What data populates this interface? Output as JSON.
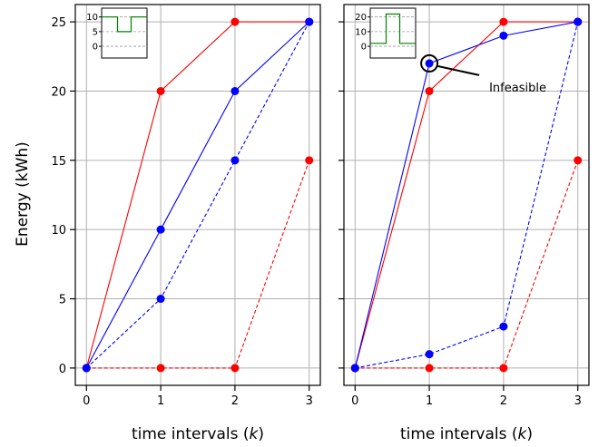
{
  "chart_data": [
    {
      "type": "line",
      "xlabel": "time intervals (k)",
      "ylabel": "Energy (kWh)",
      "xlim": [
        -0.15,
        3.15
      ],
      "ylim": [
        -1.25,
        26.25
      ],
      "xticks": [
        "0",
        "1",
        "2",
        "3"
      ],
      "yticks": [
        "0",
        "5",
        "10",
        "15",
        "20",
        "25"
      ],
      "grid": true,
      "series": [
        {
          "color": "#ff0000",
          "style": "solid",
          "x": [
            0,
            1,
            2,
            3
          ],
          "y": [
            0,
            20,
            25,
            25
          ]
        },
        {
          "color": "#ff0000",
          "style": "dashed",
          "x": [
            0,
            1,
            2,
            3
          ],
          "y": [
            0,
            0,
            0,
            15
          ]
        },
        {
          "color": "#0000ff",
          "style": "solid",
          "x": [
            0,
            1,
            2,
            3
          ],
          "y": [
            0,
            10,
            20,
            25
          ]
        },
        {
          "color": "#0000ff",
          "style": "dashed",
          "x": [
            0,
            1,
            2,
            3
          ],
          "y": [
            0,
            5,
            15,
            25
          ]
        }
      ],
      "inset": {
        "type": "step",
        "color": "#008000",
        "yticks": [
          "0",
          "5",
          "10"
        ],
        "ylim": [
          -4,
          13
        ],
        "x": [
          0,
          0.35,
          0.35,
          0.65,
          0.65,
          1
        ],
        "y": [
          10,
          10,
          5,
          5,
          10,
          10
        ]
      }
    },
    {
      "type": "line",
      "xlabel": "time intervals (k)",
      "xlim": [
        -0.15,
        3.15
      ],
      "ylim": [
        -1.25,
        26.25
      ],
      "xticks": [
        "0",
        "1",
        "2",
        "3"
      ],
      "grid": true,
      "series": [
        {
          "color": "#ff0000",
          "style": "solid",
          "x": [
            0,
            1,
            2,
            3
          ],
          "y": [
            0,
            20,
            25,
            25
          ]
        },
        {
          "color": "#ff0000",
          "style": "dashed",
          "x": [
            0,
            1,
            2,
            3
          ],
          "y": [
            0,
            0,
            0,
            15
          ]
        },
        {
          "color": "#0000ff",
          "style": "solid",
          "x": [
            0,
            1,
            2,
            3
          ],
          "y": [
            0,
            22,
            24,
            25
          ]
        },
        {
          "color": "#0000ff",
          "style": "dashed",
          "x": [
            0,
            1,
            2,
            3
          ],
          "y": [
            0,
            1,
            3,
            25
          ]
        }
      ],
      "annotation": {
        "text": "Infeasible",
        "x": 1,
        "y": 22
      },
      "inset": {
        "type": "step",
        "color": "#008000",
        "yticks": [
          "0",
          "10",
          "20"
        ],
        "ylim": [
          -8,
          26
        ],
        "x": [
          0,
          0.35,
          0.35,
          0.65,
          0.65,
          1
        ],
        "y": [
          2,
          2,
          22,
          22,
          2,
          2
        ]
      }
    }
  ]
}
